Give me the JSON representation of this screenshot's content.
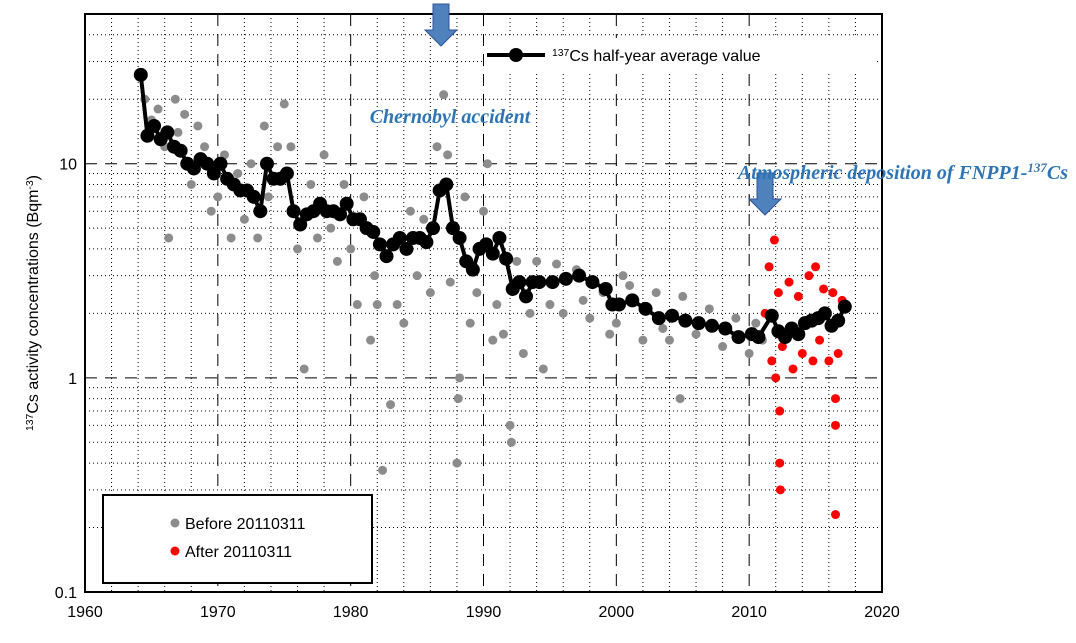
{
  "chart_data": {
    "type": "scatter",
    "ylabel": [
      {
        "t": "137",
        "sup": true
      },
      {
        "t": "Cs activity concentrations (Bqm",
        "sup": false
      },
      {
        "t": "-3",
        "sup": true
      },
      {
        "t": ")",
        "sup": false
      }
    ],
    "xlim": [
      1960,
      2020
    ],
    "xticks": [
      1960,
      1970,
      1980,
      1990,
      2000,
      2010,
      2020
    ],
    "x_minor_ticks": [
      1962,
      1964,
      1966,
      1968,
      1972,
      1974,
      1976,
      1978,
      1982,
      1984,
      1986,
      1988,
      1992,
      1994,
      1996,
      1998,
      2002,
      2004,
      2006,
      2008,
      2012,
      2014,
      2016,
      2018
    ],
    "ylim": [
      0.1,
      50
    ],
    "yticks": [
      0.1,
      1,
      10
    ],
    "y_minor_ticks": [
      0.2,
      0.3,
      0.4,
      0.5,
      0.6,
      0.7,
      0.8,
      0.9,
      2,
      3,
      4,
      5,
      6,
      7,
      8,
      9,
      20,
      30,
      40
    ],
    "log_y": true,
    "grid": true,
    "annotations": [
      [
        {
          "t": "Chernobyl accident",
          "sup": false
        }
      ],
      [
        {
          "t": "Atmospheric deposition of FNPP1-",
          "sup": false
        },
        {
          "t": "137",
          "sup": true
        },
        {
          "t": "Cs",
          "sup": false
        }
      ]
    ],
    "series": [
      {
        "name": [
          {
            "t": "Before 20110311",
            "sup": false
          }
        ],
        "color": "#8c8c8c",
        "kind": "scatter",
        "x": [
          1964.5,
          1965,
          1965.5,
          1966,
          1966.3,
          1966.8,
          1967,
          1967.5,
          1968,
          1968.5,
          1969,
          1969.5,
          1970,
          1970.5,
          1971,
          1971.5,
          1972,
          1972.5,
          1973,
          1973.5,
          1973.8,
          1974.5,
          1975,
          1975.5,
          1976,
          1976.5,
          1977,
          1977.5,
          1978,
          1978.5,
          1979,
          1979.5,
          1980,
          1980.5,
          1981,
          1981.5,
          1981.8,
          1982,
          1982.4,
          1983,
          1983.5,
          1984,
          1984.5,
          1985,
          1985.5,
          1986,
          1986.5,
          1987,
          1987.3,
          1987.5,
          1988,
          1988.1,
          1988.2,
          1988.6,
          1989,
          1989.5,
          1990,
          1990.3,
          1990.7,
          1991,
          1991.5,
          1992,
          1992.1,
          1992.5,
          1993,
          1993.5,
          1994,
          1994.5,
          1995,
          1995.5,
          1996,
          1997,
          1997.5,
          1998,
          1999,
          1999.5,
          2000,
          2000.5,
          2001,
          2002,
          2003,
          2003.5,
          2004,
          2004.8,
          2005,
          2006,
          2007,
          2008,
          2009,
          2010,
          2010.5,
          2011
        ],
        "values": [
          20,
          16,
          18,
          12,
          4.5,
          20,
          14,
          17,
          8,
          15,
          12,
          6,
          7,
          11,
          4.5,
          9,
          5.5,
          10,
          4.5,
          15,
          7,
          12,
          19,
          12,
          4,
          1.1,
          8,
          4.5,
          11,
          5,
          3.5,
          8,
          4,
          2.2,
          7,
          1.5,
          3,
          2.2,
          0.37,
          0.75,
          2.2,
          1.8,
          6,
          3,
          5.5,
          2.5,
          12,
          21,
          11,
          2.8,
          0.4,
          0.8,
          1,
          7,
          1.8,
          2.5,
          6,
          10,
          1.5,
          2.2,
          1.6,
          0.6,
          0.5,
          3.5,
          1.3,
          2,
          3.5,
          1.1,
          2.2,
          3.4,
          2,
          3.2,
          2.3,
          1.9,
          2.5,
          1.6,
          1.8,
          3,
          2.7,
          1.5,
          2.5,
          1.7,
          1.5,
          0.8,
          2.4,
          1.6,
          2.1,
          1.4,
          1.9,
          1.3,
          1.8,
          1.5
        ]
      },
      {
        "name": [
          {
            "t": "After 20110311",
            "sup": false
          }
        ],
        "color": "#ff0000",
        "kind": "scatter",
        "x": [
          2011.2,
          2011.5,
          2011.7,
          2011.9,
          2012,
          2012.2,
          2012.3,
          2012.3,
          2012.35,
          2012.5,
          2013,
          2013.3,
          2013.7,
          2014,
          2014.5,
          2014.8,
          2015,
          2015.3,
          2015.6,
          2016,
          2016.3,
          2016.5,
          2016.5,
          2016.5,
          2016.7,
          2017
        ],
        "values": [
          2,
          3.3,
          1.2,
          4.4,
          1,
          2.5,
          0.7,
          0.4,
          0.3,
          1.4,
          2.8,
          1.1,
          2.4,
          1.3,
          3,
          1.2,
          3.3,
          1.5,
          2.6,
          1.2,
          2.5,
          0.8,
          0.6,
          0.23,
          1.3,
          2.3
        ]
      },
      {
        "name": [
          {
            "t": "137",
            "sup": true
          },
          {
            "t": "Cs half-year average value",
            "sup": false
          }
        ],
        "color": "#000000",
        "kind": "line",
        "x": [
          1964.2,
          1964.7,
          1965.2,
          1965.7,
          1966.2,
          1966.7,
          1967.2,
          1967.7,
          1968.2,
          1968.7,
          1969.2,
          1969.7,
          1970.2,
          1970.7,
          1971.2,
          1971.7,
          1972.2,
          1972.7,
          1973.2,
          1973.7,
          1974.2,
          1974.7,
          1975.2,
          1975.7,
          1976.2,
          1976.7,
          1977.2,
          1977.7,
          1978.2,
          1978.7,
          1979.2,
          1979.7,
          1980.2,
          1980.7,
          1981.2,
          1981.7,
          1982.2,
          1982.7,
          1983.2,
          1983.7,
          1984.2,
          1984.7,
          1985.2,
          1985.7,
          1986.2,
          1986.7,
          1987.2,
          1987.7,
          1988.2,
          1988.7,
          1989.2,
          1989.7,
          1990.2,
          1990.7,
          1991.2,
          1991.7,
          1992.2,
          1992.7,
          1993.2,
          1993.7,
          1994.2,
          1995.2,
          1996.2,
          1997.2,
          1998.2,
          1999.2,
          1999.7,
          2000.2,
          2001.2,
          2002.2,
          2003.2,
          2004.2,
          2005.2,
          2006.2,
          2007.2,
          2008.2,
          2009.2,
          2010.2,
          2010.7,
          2011.7,
          2012.2,
          2012.7,
          2013.2,
          2013.7,
          2014.2,
          2014.7,
          2015.2,
          2015.7,
          2016.2,
          2016.7,
          2017.2
        ],
        "values": [
          26,
          13.5,
          15,
          13,
          14,
          12,
          11.5,
          10,
          9.5,
          10.5,
          10,
          9,
          10,
          8.5,
          8,
          7.5,
          7.5,
          7,
          6,
          10,
          8.5,
          8.5,
          9,
          6,
          5.2,
          5.8,
          6,
          6.5,
          6,
          6,
          5.8,
          6.5,
          5.5,
          5.5,
          5,
          4.8,
          4.2,
          3.7,
          4.2,
          4.5,
          4,
          4.5,
          4.5,
          4.3,
          5,
          7.5,
          8,
          5,
          4.5,
          3.5,
          3.2,
          4,
          4.2,
          3.8,
          4.5,
          3.6,
          2.6,
          2.8,
          2.4,
          2.8,
          2.8,
          2.8,
          2.9,
          3,
          2.8,
          2.6,
          2.2,
          2.2,
          2.3,
          2.1,
          1.9,
          1.95,
          1.85,
          1.8,
          1.75,
          1.7,
          1.55,
          1.6,
          1.55,
          1.95,
          1.65,
          1.55,
          1.7,
          1.6,
          1.8,
          1.85,
          1.9,
          2,
          1.75,
          1.85,
          2.15
        ]
      }
    ]
  }
}
